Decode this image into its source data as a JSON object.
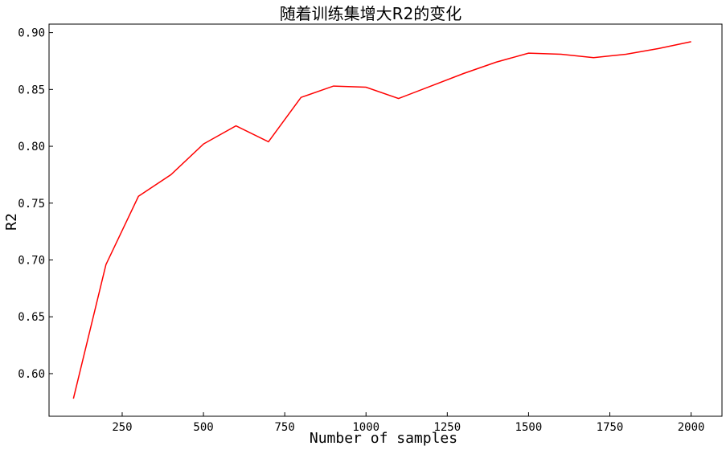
{
  "chart_data": {
    "type": "line",
    "title": "随着训练集增大R2的变化",
    "xlabel": "Number of samples",
    "ylabel": "R2",
    "xlim": [
      25,
      2095
    ],
    "ylim": [
      0.5625,
      0.9075
    ],
    "x_ticks": [
      250,
      500,
      750,
      1000,
      1250,
      1500,
      1750,
      2000
    ],
    "x_tick_labels": [
      "250",
      "500",
      "750",
      "1000",
      "1250",
      "1500",
      "1750",
      "2000"
    ],
    "y_ticks": [
      0.6,
      0.65,
      0.7,
      0.75,
      0.8,
      0.85,
      0.9
    ],
    "y_tick_labels": [
      "0.60",
      "0.65",
      "0.70",
      "0.75",
      "0.80",
      "0.85",
      "0.90"
    ],
    "grid": false,
    "series": [
      {
        "color": "#ff0000",
        "x": [
          100,
          200,
          300,
          400,
          500,
          600,
          700,
          800,
          900,
          1000,
          1100,
          1200,
          1300,
          1400,
          1500,
          1600,
          1700,
          1800,
          1900,
          2000
        ],
        "y": [
          0.578,
          0.696,
          0.756,
          0.775,
          0.802,
          0.818,
          0.804,
          0.843,
          0.853,
          0.852,
          0.842,
          0.853,
          0.864,
          0.874,
          0.882,
          0.881,
          0.878,
          0.881,
          0.886,
          0.892
        ]
      }
    ]
  }
}
